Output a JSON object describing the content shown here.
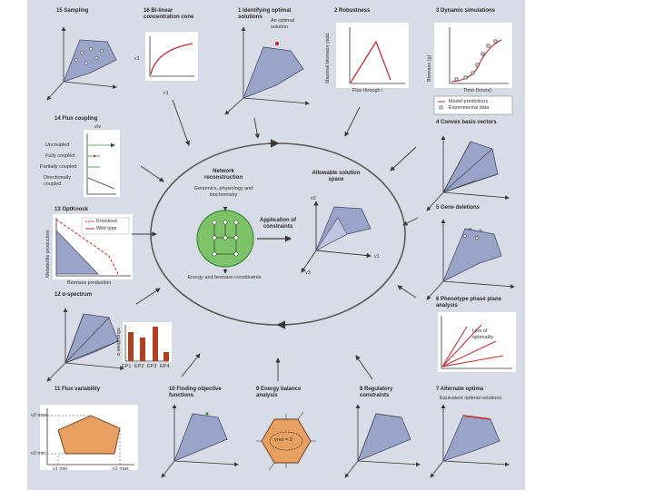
{
  "colors": {
    "panel_bg": "#d8dce6",
    "white_box": "#ffffff",
    "cone_fill": "#9aa3c8",
    "cone_stroke": "#4a4f70",
    "red": "#c0282a",
    "green": "#3a8a3a",
    "orange": "#e8a060",
    "brown": "#b04020"
  },
  "sections": {
    "s15": "15 Sampling",
    "s16": "16 Bi-linear concentration cone",
    "s1": "1 Identifying optimal solutions",
    "s2": "2 Robustness",
    "s3": "3 Dynamic simulations",
    "s14": "14 Flux coupling",
    "s4": "4 Convex basis vectors",
    "s13": "13 OptKnock",
    "s5": "5 Gene deletions",
    "s12": "12 α-spectrum",
    "s6": "6 Phenotype phase plane analysis",
    "s11": "11 Flux variability",
    "s10": "10 Finding objective functions",
    "s9": "9 Energy balance analysis",
    "s8": "8 Regulatory constraints",
    "s7": "7 Alternate optima"
  },
  "labels": {
    "c1": "c1",
    "c1_bottom": "c1",
    "optimal_solution": "An optimal solution",
    "maximal_biomass_yield": "Maximal biomass yield",
    "flux_through_i": "Flux through i",
    "biomass": "Biomass (g)",
    "time_hours": "Time (hours)",
    "model_predictions": "Model predictions",
    "experimental_data": "Experimental data",
    "v_j_v_i": "v/v",
    "uncoupled": "Uncoupled",
    "fully_coupled": "Fully coupled",
    "partially_coupled": "Partially coupled",
    "directionally_coupled": "Directionally coupled",
    "knockout": "Knockout",
    "wild_type": "Wild type",
    "metabolite_production": "Metabolite production",
    "biomass_production": "Biomass production",
    "alpha_weightings": "α weightings",
    "ep1": "EP1",
    "ep2": "EP2",
    "ep3": "EP3",
    "ep4": "EP4",
    "v2_max": "v2 max",
    "v2_min": "v2 min",
    "v1_min": "v1 min",
    "v1_max": "v1 max",
    "network_reconstruction": "Network reconstruction",
    "genomics": "Genomics, physiology and biochemistry",
    "allowable_space": "Allowable solution space",
    "application_constraints": "Application of constraints",
    "energy_biomass": "Energy and biomass constituents",
    "v1": "v1",
    "v2": "v2",
    "v3": "v3",
    "a": "a",
    "b": "b",
    "line_of_optimality": "Line of optimality",
    "equivalent_optimal": "Equivalent optimal solutions",
    "vnet": "vnet = 0"
  }
}
